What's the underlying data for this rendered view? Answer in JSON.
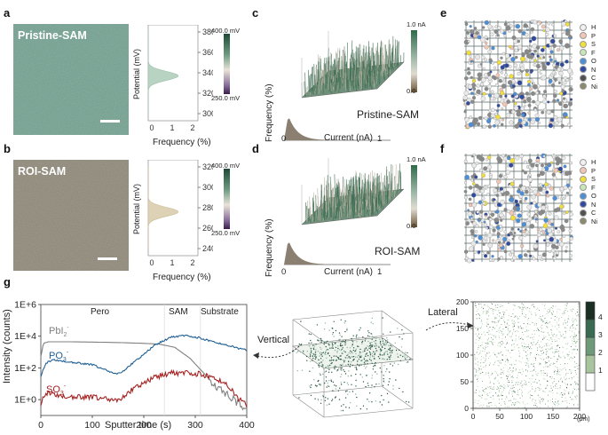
{
  "panels": {
    "a": {
      "label": "a",
      "image_title": "Pristine-SAM",
      "yticks": [
        "380",
        "360",
        "340",
        "320",
        "300"
      ],
      "xticks": [
        "0",
        "1",
        "2"
      ],
      "ylabel": "Potential (mV)",
      "xlabel": "Frequency (%)",
      "cbar_top": "400.0 mV",
      "cbar_bottom": "250.0 mV",
      "peak_mV": 337
    },
    "b": {
      "label": "b",
      "image_title": "ROI-SAM",
      "yticks": [
        "320",
        "300",
        "280",
        "260",
        "240"
      ],
      "xticks": [
        "0",
        "1",
        "2"
      ],
      "ylabel": "Potential (mV)",
      "xlabel": "Frequency (%)",
      "cbar_top": "400.0 mV",
      "cbar_bottom": "250.0 mV",
      "peak_mV": 276
    },
    "c": {
      "label": "c",
      "sample": "Pristine-SAM",
      "xticks": [
        "0",
        "1"
      ],
      "xlabel": "Current (nA)",
      "ylabel": "Frequency (%)",
      "cbar_top": "1.0 nA",
      "cbar_bottom": "0.0"
    },
    "d": {
      "label": "d",
      "sample": "ROI-SAM",
      "xticks": [
        "0",
        "1"
      ],
      "xlabel": "Current (nA)",
      "ylabel": "Frequency (%)",
      "cbar_top": "1.0 nA",
      "cbar_bottom": "0.0"
    },
    "e": {
      "label": "e"
    },
    "f": {
      "label": "f"
    },
    "g": {
      "label": "g"
    }
  },
  "legend_elements": [
    {
      "el": "H",
      "color": "#f0f0f0"
    },
    {
      "el": "P",
      "color": "#f2c6b4"
    },
    {
      "el": "S",
      "color": "#f2df3a"
    },
    {
      "el": "F",
      "color": "#c9e6b6"
    },
    {
      "el": "O",
      "color": "#4d8fd6"
    },
    {
      "el": "N",
      "color": "#2f4a9e"
    },
    {
      "el": "C",
      "color": "#505050"
    },
    {
      "el": "Ni",
      "color": "#8a8a6a"
    }
  ],
  "chart_data": [
    {
      "type": "line",
      "title": "",
      "xlabel": "Sputter time (s)",
      "ylabel": "Intensity (counts)",
      "xlim": [
        0,
        400
      ],
      "ylim_log10": [
        -1,
        6
      ],
      "xticks": [
        "0",
        "100",
        "200",
        "300",
        "400"
      ],
      "yticks": [
        "1E+0",
        "1E+2",
        "1E+4",
        "1E+6"
      ],
      "regions": [
        "Pero",
        "SAM",
        "Substrate"
      ],
      "series": [
        {
          "name": "PbI",
          "sub": "2",
          "sup": "-",
          "color": "#808080",
          "x": [
            0,
            5,
            15,
            50,
            100,
            150,
            200,
            230,
            260,
            290,
            310,
            330,
            350,
            370,
            385,
            400
          ],
          "log10": [
            2.7,
            3.55,
            3.65,
            3.65,
            3.63,
            3.6,
            3.55,
            3.5,
            3.3,
            2.6,
            1.9,
            1.2,
            0.6,
            0.1,
            -0.3,
            -0.6
          ]
        },
        {
          "name": "PO",
          "sub": "3",
          "sup": "-",
          "color": "#1f5f95",
          "x": [
            0,
            10,
            25,
            50,
            100,
            130,
            145,
            160,
            190,
            220,
            250,
            275,
            300,
            330,
            360,
            400
          ],
          "log10": [
            1.5,
            2.3,
            2.5,
            2.4,
            2.2,
            1.8,
            1.6,
            1.8,
            2.6,
            3.4,
            3.9,
            4.05,
            3.95,
            3.7,
            3.45,
            3.1
          ]
        },
        {
          "name": "SO",
          "sub": "3",
          "sup": "-",
          "color": "#a52020",
          "x": [
            0,
            10,
            25,
            50,
            100,
            130,
            145,
            160,
            190,
            220,
            250,
            280,
            310,
            340,
            360,
            380,
            400
          ],
          "log10": [
            -0.2,
            0.4,
            0.3,
            0.2,
            0.15,
            0.0,
            -0.1,
            0.2,
            0.9,
            1.4,
            1.65,
            1.7,
            1.6,
            1.35,
            1.0,
            0.2,
            -0.4
          ]
        }
      ]
    },
    {
      "type": "heatmap",
      "title": "Lateral",
      "xlabel": "(μm)",
      "xlim": [
        0,
        200
      ],
      "ylim": [
        0,
        200
      ],
      "xticks": [
        "0",
        "50",
        "100",
        "150",
        "200"
      ],
      "yticks": [
        "0",
        "50",
        "100",
        "150",
        "200"
      ],
      "colorbar_ticks": [
        "1",
        "2",
        "3",
        "4"
      ],
      "colorbar_colors": [
        "#ffffff",
        "#a9c5a0",
        "#6f9a7a",
        "#3a6b52",
        "#1c2f24"
      ]
    }
  ],
  "g_3d_label": "Vertical"
}
